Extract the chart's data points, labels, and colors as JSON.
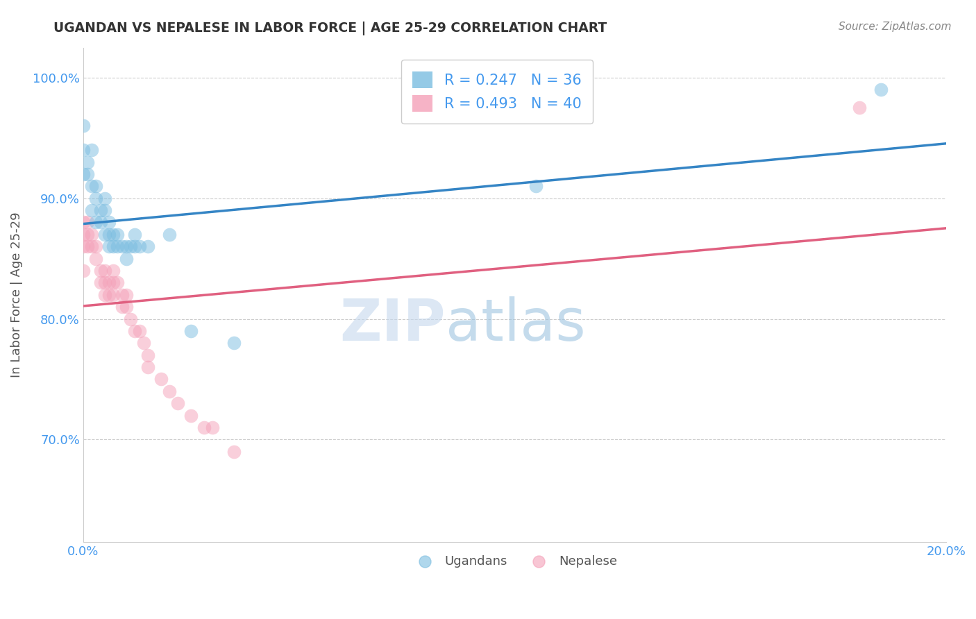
{
  "title": "UGANDAN VS NEPALESE IN LABOR FORCE | AGE 25-29 CORRELATION CHART",
  "source_text": "Source: ZipAtlas.com",
  "ylabel": "In Labor Force | Age 25-29",
  "xlim": [
    0.0,
    0.2
  ],
  "ylim": [
    0.615,
    1.025
  ],
  "yticks": [
    0.7,
    0.8,
    0.9,
    1.0
  ],
  "ytick_labels": [
    "70.0%",
    "80.0%",
    "90.0%",
    "100.0%"
  ],
  "xticks": [
    0.0,
    0.2
  ],
  "xtick_labels": [
    "0.0%",
    "20.0%"
  ],
  "ugandan_color": "#7bbde0",
  "nepalese_color": "#f4a0b8",
  "trend_ugandan_color": "#3585c5",
  "trend_nepalese_color": "#e06080",
  "legend_ugandan": "Ugandans",
  "legend_nepalese": "Nepalese",
  "R_ugandan": 0.247,
  "N_ugandan": 36,
  "R_nepalese": 0.493,
  "N_nepalese": 40,
  "ugandan_x": [
    0.0,
    0.0,
    0.0,
    0.001,
    0.001,
    0.002,
    0.002,
    0.002,
    0.003,
    0.003,
    0.003,
    0.004,
    0.004,
    0.005,
    0.005,
    0.005,
    0.006,
    0.006,
    0.006,
    0.007,
    0.007,
    0.008,
    0.008,
    0.009,
    0.01,
    0.01,
    0.011,
    0.012,
    0.012,
    0.013,
    0.015,
    0.02,
    0.025,
    0.035,
    0.105,
    0.185
  ],
  "ugandan_y": [
    0.96,
    0.94,
    0.92,
    0.93,
    0.92,
    0.94,
    0.91,
    0.89,
    0.91,
    0.9,
    0.88,
    0.89,
    0.88,
    0.9,
    0.89,
    0.87,
    0.88,
    0.87,
    0.86,
    0.87,
    0.86,
    0.87,
    0.86,
    0.86,
    0.86,
    0.85,
    0.86,
    0.87,
    0.86,
    0.86,
    0.86,
    0.87,
    0.79,
    0.78,
    0.91,
    0.99
  ],
  "nepalese_x": [
    0.0,
    0.0,
    0.0,
    0.0,
    0.001,
    0.001,
    0.001,
    0.002,
    0.002,
    0.003,
    0.003,
    0.004,
    0.004,
    0.005,
    0.005,
    0.005,
    0.006,
    0.006,
    0.007,
    0.007,
    0.007,
    0.008,
    0.009,
    0.009,
    0.01,
    0.01,
    0.011,
    0.012,
    0.013,
    0.014,
    0.015,
    0.015,
    0.018,
    0.02,
    0.022,
    0.025,
    0.028,
    0.03,
    0.035,
    0.18
  ],
  "nepalese_y": [
    0.88,
    0.87,
    0.86,
    0.84,
    0.88,
    0.87,
    0.86,
    0.87,
    0.86,
    0.86,
    0.85,
    0.84,
    0.83,
    0.84,
    0.83,
    0.82,
    0.83,
    0.82,
    0.84,
    0.83,
    0.82,
    0.83,
    0.82,
    0.81,
    0.82,
    0.81,
    0.8,
    0.79,
    0.79,
    0.78,
    0.77,
    0.76,
    0.75,
    0.74,
    0.73,
    0.72,
    0.71,
    0.71,
    0.69,
    0.975
  ],
  "watermark_zip": "ZIP",
  "watermark_atlas": "atlas",
  "background_color": "#ffffff",
  "grid_color": "#cccccc",
  "title_color": "#333333",
  "axis_label_color": "#555555",
  "tick_color": "#4499ee",
  "legend_text_color": "#4499ee",
  "source_color": "#888888",
  "watermark_zip_color": "#c5d8ee",
  "watermark_atlas_color": "#9ec4e0"
}
